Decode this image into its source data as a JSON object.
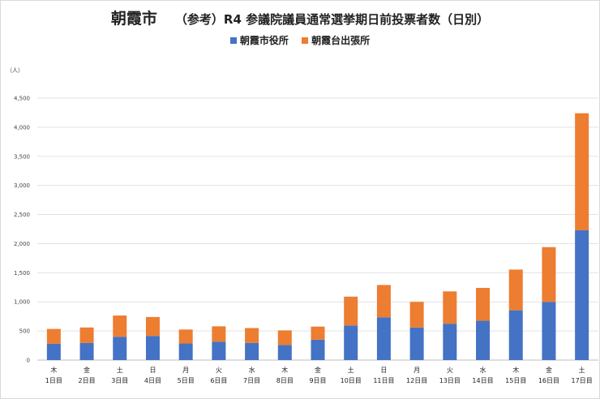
{
  "chart_data": {
    "type": "bar",
    "stacked": true,
    "title_main": "朝霞市",
    "title_sub": "（参考）R4 参議院議員通常選挙期日前投票者数（日別）",
    "unit_label": "（人）",
    "ylim": [
      0,
      4500
    ],
    "yticks": [
      0,
      500,
      1000,
      1500,
      2000,
      2500,
      3000,
      3500,
      4000,
      4500
    ],
    "ytick_labels": [
      "0",
      "500",
      "1,000",
      "1,500",
      "2,000",
      "2,500",
      "3,000",
      "3,500",
      "4,000",
      "4,500"
    ],
    "grid": true,
    "legend_position": "top",
    "weekdays": [
      "木",
      "金",
      "土",
      "日",
      "月",
      "火",
      "水",
      "木",
      "金",
      "土",
      "日",
      "月",
      "火",
      "水",
      "木",
      "金",
      "土"
    ],
    "categories": [
      "1日目",
      "2日目",
      "3日目",
      "4日目",
      "5日目",
      "6日目",
      "7日目",
      "8日目",
      "9日目",
      "10日目",
      "11日目",
      "12日目",
      "13日目",
      "14日目",
      "15日目",
      "16日目",
      "17日目"
    ],
    "series": [
      {
        "name": "朝霞市役所",
        "color": "#4472c4",
        "values": [
          280,
          295,
          400,
          415,
          285,
          315,
          295,
          260,
          350,
          595,
          735,
          560,
          625,
          675,
          855,
          1000,
          2230
        ]
      },
      {
        "name": "朝霞台出張所",
        "color": "#ed7d31",
        "values": [
          255,
          265,
          365,
          325,
          240,
          265,
          255,
          250,
          225,
          495,
          555,
          440,
          555,
          565,
          700,
          940,
          2010
        ]
      }
    ]
  }
}
